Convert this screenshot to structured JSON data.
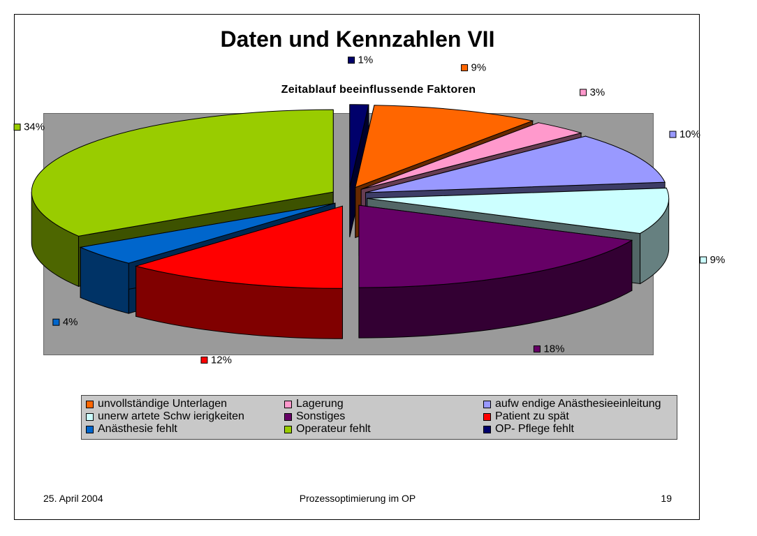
{
  "slide": {
    "title": "Daten und Kennzahlen VII",
    "footer": {
      "date": "25. April 2004",
      "center": "Prozessoptimierung im OP",
      "page": "19"
    }
  },
  "chart_data": {
    "type": "pie",
    "title": "Zeitablauf beeinflussende Faktoren",
    "style": "3d-exploded",
    "legend_position": "bottom",
    "slices": [
      {
        "label": "OP- Pflege fehlt",
        "value": 1,
        "value_label": "1%",
        "color": "#00006b"
      },
      {
        "label": "unvollständige Unterlagen",
        "value": 9,
        "value_label": "9%",
        "color": "#ff6600"
      },
      {
        "label": "Lagerung",
        "value": 3,
        "value_label": "3%",
        "color": "#ff99cc"
      },
      {
        "label": "aufw endige Anästhesieeinleitung",
        "value": 10,
        "value_label": "10%",
        "color": "#9999ff"
      },
      {
        "label": "unerw artete Schw ierigkeiten",
        "value": 9,
        "value_label": "9%",
        "color": "#ccffff"
      },
      {
        "label": "Sonstiges",
        "value": 18,
        "value_label": "18%",
        "color": "#660066"
      },
      {
        "label": "Patient zu spät",
        "value": 12,
        "value_label": "12%",
        "color": "#ff0000"
      },
      {
        "label": "Anästhesie fehlt",
        "value": 4,
        "value_label": "4%",
        "color": "#0066cc"
      },
      {
        "label": "Operateur fehlt",
        "value": 34,
        "value_label": "34%",
        "color": "#99cc00"
      }
    ],
    "legend": [
      {
        "label": "unvollständige Unterlagen",
        "color": "#ff6600"
      },
      {
        "label": "Lagerung",
        "color": "#ff99cc"
      },
      {
        "label": "aufw endige Anästhesieeinleitung",
        "color": "#9999ff"
      },
      {
        "label": "unerw artete Schw ierigkeiten",
        "color": "#ccffff"
      },
      {
        "label": "Sonstiges",
        "color": "#660066"
      },
      {
        "label": "Patient zu spät",
        "color": "#ff0000"
      },
      {
        "label": "Anästhesie fehlt",
        "color": "#0066cc"
      },
      {
        "label": "Operateur fehlt",
        "color": "#99cc00"
      },
      {
        "label": "OP- Pflege fehlt",
        "color": "#00006b"
      }
    ]
  }
}
